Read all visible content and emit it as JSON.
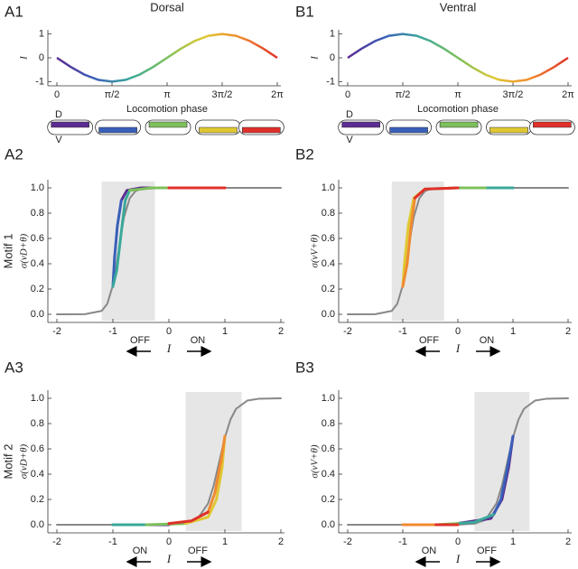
{
  "chart_data": [
    {
      "type": "line",
      "panel_label": "A1",
      "title": "Dorsal",
      "ylabel": "I",
      "xlabel": "Locomotion phase",
      "body_labels": [
        "D",
        "V"
      ],
      "xlim": [
        0,
        6.283
      ],
      "xticks": [
        0,
        {
          "value": 1.571,
          "label": "π/2"
        },
        {
          "value": 3.142,
          "label": "π"
        },
        {
          "value": 4.712,
          "label": "3π/2"
        },
        {
          "value": 6.283,
          "label": "2π"
        }
      ],
      "ylim": [
        -1.1,
        1.1
      ],
      "yticks": [
        -1,
        0,
        1
      ],
      "series": [
        {
          "gradient": [
            "#5b2c91",
            "#3a5fb8",
            "#3aa89a",
            "#7cc05a",
            "#e0c832",
            "#f08a30",
            "#e0302a"
          ],
          "x": [
            0,
            0.393,
            0.785,
            1.178,
            1.571,
            1.963,
            2.356,
            2.749,
            3.142,
            3.534,
            3.927,
            4.32,
            4.712,
            5.105,
            5.498,
            5.89,
            6.283
          ],
          "values": [
            0,
            -0.383,
            -0.707,
            -0.924,
            -1,
            -0.924,
            -0.707,
            -0.383,
            0,
            0.383,
            0.707,
            0.924,
            1,
            0.924,
            0.707,
            0.383,
            0
          ]
        }
      ]
    },
    {
      "type": "line",
      "panel_label": "B1",
      "title": "Ventral",
      "ylabel": "I",
      "xlabel": "Locomotion phase",
      "body_labels": [
        "D",
        "V"
      ],
      "xlim": [
        0,
        6.283
      ],
      "xticks": [
        0,
        {
          "value": 1.571,
          "label": "π/2"
        },
        {
          "value": 3.142,
          "label": "π"
        },
        {
          "value": 4.712,
          "label": "3π/2"
        },
        {
          "value": 6.283,
          "label": "2π"
        }
      ],
      "ylim": [
        -1.1,
        1.1
      ],
      "yticks": [
        -1,
        0,
        1
      ],
      "series": [
        {
          "gradient": [
            "#5b2c91",
            "#3a5fb8",
            "#3aa89a",
            "#7cc05a",
            "#e0c832",
            "#f08a30",
            "#e0302a"
          ],
          "x": [
            0,
            0.393,
            0.785,
            1.178,
            1.571,
            1.963,
            2.356,
            2.749,
            3.142,
            3.534,
            3.927,
            4.32,
            4.712,
            5.105,
            5.498,
            5.89,
            6.283
          ],
          "values": [
            0,
            0.383,
            0.707,
            0.924,
            1,
            0.924,
            0.707,
            0.383,
            0,
            -0.383,
            -0.707,
            -0.924,
            -1,
            -0.924,
            -0.707,
            -0.383,
            0
          ]
        }
      ]
    },
    {
      "type": "sigmoid",
      "panel_label": "A2",
      "row_label": "Motif 1",
      "ylabel": "σ(vD+θ)",
      "xlabel": "I",
      "arrow_labels": [
        "OFF",
        "ON"
      ],
      "xlim": [
        -2,
        2
      ],
      "xticks": [
        -2,
        -1,
        0,
        1,
        2
      ],
      "ylim": [
        -0.05,
        1.05
      ],
      "yticks": [
        {
          "value": 0,
          "label": "0.0"
        },
        0.2,
        0.4,
        0.6,
        0.8,
        {
          "value": 1,
          "label": "1.0"
        }
      ],
      "shade": [
        -1.2,
        -0.25
      ],
      "series": [
        {
          "color": "#888888",
          "x": [
            -2,
            -1.5,
            -1.2,
            -1.1,
            -1.0,
            -0.95,
            -0.9,
            -0.85,
            -0.8,
            -0.7,
            -0.6,
            -0.5,
            0,
            1,
            2
          ],
          "values": [
            0,
            0.0007,
            0.027,
            0.083,
            0.23,
            0.354,
            0.5,
            0.646,
            0.77,
            0.917,
            0.973,
            0.992,
            1,
            1,
            1
          ]
        },
        {
          "color": "#5b2c91",
          "x": [
            0,
            -0.5,
            -0.75,
            -0.85
          ],
          "values": [
            1,
            1,
            0.98,
            0.9
          ]
        },
        {
          "color": "#3a5fb8",
          "x": [
            -0.85,
            -0.92,
            -0.97,
            -1.0
          ],
          "values": [
            0.9,
            0.7,
            0.45,
            0.22
          ]
        },
        {
          "color": "#3aa89a",
          "x": [
            -1.0,
            -0.93,
            -0.85,
            -0.78,
            -0.7
          ],
          "values": [
            0.22,
            0.35,
            0.65,
            0.9,
            0.98
          ]
        },
        {
          "color": "#7cc05a",
          "x": [
            -0.7,
            -0.3,
            0
          ],
          "values": [
            0.98,
            1,
            1
          ]
        },
        {
          "color": "#e0c832",
          "x": [
            0,
            0.5
          ],
          "values": [
            1,
            1
          ]
        },
        {
          "color": "#f08a30",
          "x": [
            0.5,
            1.0
          ],
          "values": [
            1,
            1
          ]
        },
        {
          "color": "#e0302a",
          "x": [
            1.0,
            0.3,
            0
          ],
          "values": [
            1,
            1,
            1
          ]
        }
      ]
    },
    {
      "type": "sigmoid",
      "panel_label": "B2",
      "ylabel": "σ(vV+θ)",
      "xlabel": "I",
      "arrow_labels": [
        "OFF",
        "ON"
      ],
      "xlim": [
        -2,
        2
      ],
      "xticks": [
        -2,
        -1,
        0,
        1,
        2
      ],
      "ylim": [
        -0.05,
        1.05
      ],
      "yticks": [
        {
          "value": 0,
          "label": "0.0"
        },
        0.2,
        0.4,
        0.6,
        0.8,
        {
          "value": 1,
          "label": "1.0"
        }
      ],
      "shade": [
        -1.2,
        -0.25
      ],
      "series": [
        {
          "color": "#888888",
          "x": [
            -2,
            -1.5,
            -1.2,
            -1.1,
            -1.0,
            -0.95,
            -0.9,
            -0.85,
            -0.8,
            -0.7,
            -0.6,
            -0.5,
            0,
            1,
            2
          ],
          "values": [
            0,
            0.0007,
            0.027,
            0.083,
            0.23,
            0.354,
            0.5,
            0.646,
            0.77,
            0.917,
            0.973,
            0.992,
            1,
            1,
            1
          ]
        },
        {
          "color": "#5b2c91",
          "x": [
            0,
            0.5
          ],
          "values": [
            1,
            1
          ]
        },
        {
          "color": "#3a5fb8",
          "x": [
            0.5,
            1.0
          ],
          "values": [
            1,
            1
          ]
        },
        {
          "color": "#3aa89a",
          "x": [
            1.0,
            0.5
          ],
          "values": [
            1,
            1
          ]
        },
        {
          "color": "#7cc05a",
          "x": [
            0.5,
            0,
            -0.6
          ],
          "values": [
            1,
            1,
            0.99
          ]
        },
        {
          "color": "#e0c832",
          "x": [
            -0.6,
            -0.8,
            -0.9,
            -0.97,
            -1.0
          ],
          "values": [
            0.99,
            0.92,
            0.7,
            0.4,
            0.22
          ]
        },
        {
          "color": "#f08a30",
          "x": [
            -1.0,
            -0.92,
            -0.85,
            -0.78
          ],
          "values": [
            0.22,
            0.4,
            0.7,
            0.92
          ]
        },
        {
          "color": "#e0302a",
          "x": [
            -0.78,
            -0.6,
            0
          ],
          "values": [
            0.92,
            0.99,
            1
          ]
        }
      ]
    },
    {
      "type": "sigmoid",
      "panel_label": "A3",
      "row_label": "Motif 2",
      "ylabel": "σ(vD+θ)",
      "xlabel": "I",
      "arrow_labels": [
        "ON",
        "OFF"
      ],
      "xlim": [
        -2,
        2
      ],
      "xticks": [
        -2,
        -1,
        0,
        1,
        2
      ],
      "ylim": [
        -0.05,
        1.05
      ],
      "yticks": [
        {
          "value": 0,
          "label": "0.0"
        },
        0.2,
        0.4,
        0.6,
        0.8,
        {
          "value": 1,
          "label": "1.0"
        }
      ],
      "shade": [
        0.3,
        1.3
      ],
      "series": [
        {
          "color": "#888888",
          "x": [
            -2,
            -1,
            0,
            0.3,
            0.5,
            0.7,
            0.8,
            0.9,
            1.0,
            1.1,
            1.2,
            1.4,
            1.6,
            2
          ],
          "values": [
            0,
            0,
            0.0007,
            0.008,
            0.039,
            0.168,
            0.31,
            0.5,
            0.69,
            0.832,
            0.917,
            0.982,
            0.996,
            1
          ]
        },
        {
          "color": "#5b2c91",
          "x": [
            0,
            -0.6
          ],
          "values": [
            0,
            0
          ]
        },
        {
          "color": "#3a5fb8",
          "x": [
            -0.6,
            -1.0
          ],
          "values": [
            0,
            0
          ]
        },
        {
          "color": "#3aa89a",
          "x": [
            -1.0,
            -0.4
          ],
          "values": [
            0,
            0
          ]
        },
        {
          "color": "#7cc05a",
          "x": [
            -0.4,
            0.3
          ],
          "values": [
            0,
            0.01
          ]
        },
        {
          "color": "#e0c832",
          "x": [
            0.3,
            0.7,
            0.85,
            0.95,
            1.0
          ],
          "values": [
            0.01,
            0.06,
            0.2,
            0.45,
            0.7
          ]
        },
        {
          "color": "#f08a30",
          "x": [
            1.0,
            0.93,
            0.82,
            0.7
          ],
          "values": [
            0.7,
            0.5,
            0.25,
            0.1
          ]
        },
        {
          "color": "#e0302a",
          "x": [
            0.7,
            0.4,
            0
          ],
          "values": [
            0.1,
            0.03,
            0.01
          ]
        }
      ]
    },
    {
      "type": "sigmoid",
      "panel_label": "B3",
      "ylabel": "σ(vV+θ)",
      "xlabel": "I",
      "arrow_labels": [
        "ON",
        "OFF"
      ],
      "xlim": [
        -2,
        2
      ],
      "xticks": [
        -2,
        -1,
        0,
        1,
        2
      ],
      "ylim": [
        -0.05,
        1.05
      ],
      "yticks": [
        {
          "value": 0,
          "label": "0.0"
        },
        0.2,
        0.4,
        0.6,
        0.8,
        {
          "value": 1,
          "label": "1.0"
        }
      ],
      "shade": [
        0.3,
        1.3
      ],
      "series": [
        {
          "color": "#888888",
          "x": [
            -2,
            -1,
            0,
            0.3,
            0.5,
            0.7,
            0.8,
            0.9,
            1.0,
            1.1,
            1.2,
            1.4,
            1.6,
            2
          ],
          "values": [
            0,
            0,
            0.0007,
            0.008,
            0.039,
            0.168,
            0.31,
            0.5,
            0.69,
            0.832,
            0.917,
            0.982,
            0.996,
            1
          ]
        },
        {
          "color": "#5b2c91",
          "x": [
            0,
            0.6,
            0.8,
            0.92,
            1.0
          ],
          "values": [
            0.01,
            0.05,
            0.2,
            0.45,
            0.7
          ]
        },
        {
          "color": "#3a5fb8",
          "x": [
            1.0,
            0.9,
            0.78,
            0.65
          ],
          "values": [
            0.7,
            0.45,
            0.2,
            0.08
          ]
        },
        {
          "color": "#3aa89a",
          "x": [
            0.65,
            0.3,
            0
          ],
          "values": [
            0.08,
            0.02,
            0.01
          ]
        },
        {
          "color": "#7cc05a",
          "x": [
            0,
            -0.4
          ],
          "values": [
            0.01,
            0
          ]
        },
        {
          "color": "#e0c832",
          "x": [
            -0.4,
            -1.0
          ],
          "values": [
            0,
            0
          ]
        },
        {
          "color": "#f08a30",
          "x": [
            -1.0,
            -0.4
          ],
          "values": [
            0,
            0
          ]
        },
        {
          "color": "#e0302a",
          "x": [
            -0.4,
            0
          ],
          "values": [
            0,
            0
          ]
        }
      ]
    }
  ]
}
